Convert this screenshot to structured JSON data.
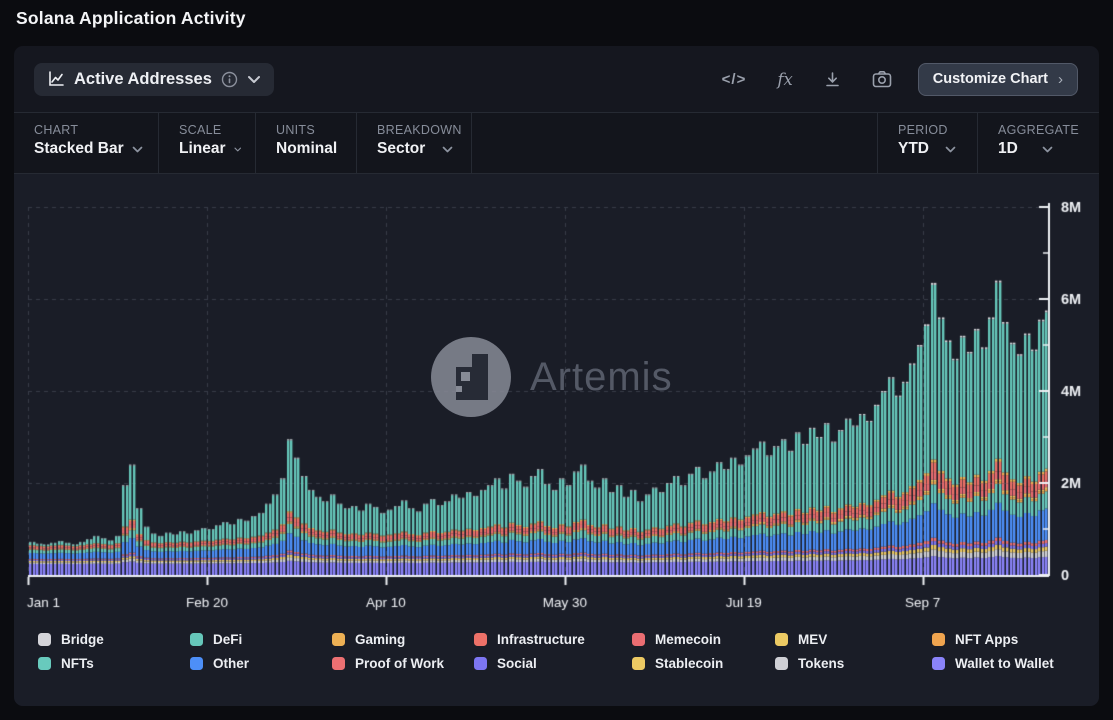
{
  "page": {
    "title": "Solana Application Activity"
  },
  "toolbar": {
    "metric": {
      "label": "Active Addresses"
    },
    "actions": {
      "code_label": "</>",
      "fx_label": "fx",
      "customize_label": "Customize Chart",
      "customize_chevron": "›"
    }
  },
  "filters": [
    {
      "label": "CHART",
      "value": "Stacked Bar"
    },
    {
      "label": "SCALE",
      "value": "Linear"
    },
    {
      "label": "UNITS",
      "value": "Nominal"
    },
    {
      "label": "BREAKDOWN",
      "value": "Sector"
    },
    {
      "label": "PERIOD",
      "value": "YTD"
    },
    {
      "label": "AGGREGATE",
      "value": "1D"
    }
  ],
  "watermark": {
    "brand": "Artemis"
  },
  "legend": {
    "items": [
      {
        "name": "Bridge",
        "color": "#d4d4d9"
      },
      {
        "name": "NFTs",
        "color": "#68cabd"
      },
      {
        "name": "DeFi",
        "color": "#66c7ba"
      },
      {
        "name": "Other",
        "color": "#4d8ff8"
      },
      {
        "name": "Gaming",
        "color": "#edb054"
      },
      {
        "name": "Proof of Work",
        "color": "#ec7072"
      },
      {
        "name": "Infrastructure",
        "color": "#ed7168"
      },
      {
        "name": "Social",
        "color": "#7d76f2"
      },
      {
        "name": "Memecoin",
        "color": "#ea6d72"
      },
      {
        "name": "Stablecoin",
        "color": "#ecc963"
      },
      {
        "name": "MEV",
        "color": "#ecca63"
      },
      {
        "name": "Tokens",
        "color": "#cfd0d5"
      },
      {
        "name": "NFT Apps",
        "color": "#efa44f"
      },
      {
        "name": "Wallet to Wallet",
        "color": "#8a83f9"
      }
    ]
  },
  "chart_data": {
    "type": "bar",
    "stacked": true,
    "title": "Active Addresses",
    "ylabel": "Active Addresses",
    "ylim_m": [
      0,
      8
    ],
    "grid": "dashed",
    "legend_position": "bottom",
    "x_axis": {
      "tick_labels": [
        "Jan 1",
        "Feb 20",
        "Apr 10",
        "May 30",
        "Jul 19",
        "Sep 7"
      ],
      "tick_days": [
        0,
        50,
        100,
        150,
        200,
        250
      ],
      "days_total": 285
    },
    "y_axis": {
      "tick_labels": [
        "0",
        "2M",
        "4M",
        "6M",
        "8M"
      ],
      "tick_values_m": [
        0,
        2,
        4,
        6,
        8
      ],
      "minor_ticks_m": [
        1,
        3,
        5,
        7
      ]
    },
    "sample_step_days": 2,
    "totals_m": [
      0.72,
      0.68,
      0.65,
      0.7,
      0.74,
      0.7,
      0.66,
      0.72,
      0.78,
      0.85,
      0.8,
      0.75,
      0.85,
      1.95,
      2.4,
      1.45,
      1.05,
      0.9,
      0.85,
      0.92,
      0.88,
      0.95,
      0.9,
      0.97,
      1.02,
      1.0,
      1.08,
      1.15,
      1.1,
      1.22,
      1.18,
      1.28,
      1.35,
      1.55,
      1.75,
      2.1,
      2.95,
      2.55,
      2.15,
      1.85,
      1.7,
      1.6,
      1.75,
      1.55,
      1.45,
      1.5,
      1.4,
      1.55,
      1.48,
      1.35,
      1.42,
      1.5,
      1.62,
      1.45,
      1.38,
      1.55,
      1.65,
      1.52,
      1.6,
      1.75,
      1.68,
      1.8,
      1.72,
      1.85,
      1.95,
      2.1,
      1.88,
      2.2,
      2.05,
      1.92,
      2.15,
      2.3,
      1.98,
      1.85,
      2.1,
      1.95,
      2.25,
      2.4,
      2.05,
      1.9,
      2.1,
      1.8,
      1.95,
      1.7,
      1.85,
      1.6,
      1.75,
      1.9,
      1.8,
      2.0,
      2.15,
      1.95,
      2.2,
      2.35,
      2.1,
      2.25,
      2.45,
      2.3,
      2.55,
      2.4,
      2.6,
      2.75,
      2.9,
      2.6,
      2.8,
      2.95,
      2.7,
      3.1,
      2.85,
      3.2,
      3.0,
      3.3,
      2.9,
      3.15,
      3.4,
      3.25,
      3.5,
      3.35,
      3.7,
      4.0,
      4.3,
      3.9,
      4.2,
      4.6,
      5.0,
      5.45,
      6.35,
      5.6,
      5.1,
      4.7,
      5.2,
      4.85,
      5.35,
      4.95,
      5.6,
      6.4,
      5.5,
      5.05,
      4.8,
      5.25,
      4.9,
      5.55,
      5.75
    ],
    "series_composition_bottom_to_top": [
      {
        "name": "Wallet to Wallet",
        "color": "#8a83f9",
        "base_m": 0.22,
        "per_total": 0.03
      },
      {
        "name": "Tokens",
        "color": "#cfd0d5",
        "base_m": 0.02,
        "per_total": 0.02
      },
      {
        "name": "Stablecoin",
        "color": "#ecc963",
        "base_m": 0.02,
        "per_total": 0.012
      },
      {
        "name": "Social",
        "color": "#7d76f2",
        "base_m": 0.02,
        "per_total": 0.01
      },
      {
        "name": "Proof of Work",
        "color": "#ec7072",
        "base_m": 0.01,
        "per_total": 0.01
      },
      {
        "name": "Other",
        "color": "#4d8ff8",
        "base_m": 0.05,
        "per_total": 0.11
      },
      {
        "name": "NFTs",
        "color": "#68cabd",
        "base_m": 0.03,
        "per_total": 0.06
      },
      {
        "name": "NFT Apps",
        "color": "#efa44f",
        "base_m": 0.005,
        "per_total": 0.008
      },
      {
        "name": "MEV",
        "color": "#ecca63",
        "base_m": 0.005,
        "per_total": 0.006
      },
      {
        "name": "Memecoin",
        "color": "#ea6d72",
        "base_m": 0.01,
        "per_total": 0.025
      },
      {
        "name": "Infrastructure",
        "color": "#ed7168",
        "base_m": 0.015,
        "per_total": 0.03
      },
      {
        "name": "Gaming",
        "color": "#edb054",
        "base_m": 0.005,
        "per_total": 0.01
      },
      {
        "name": "DeFi",
        "color": "#66c7ba",
        "remainder": true
      },
      {
        "name": "Bridge",
        "color": "#d4d4d9",
        "base_m": 0.005,
        "per_total": 0.006
      }
    ]
  }
}
